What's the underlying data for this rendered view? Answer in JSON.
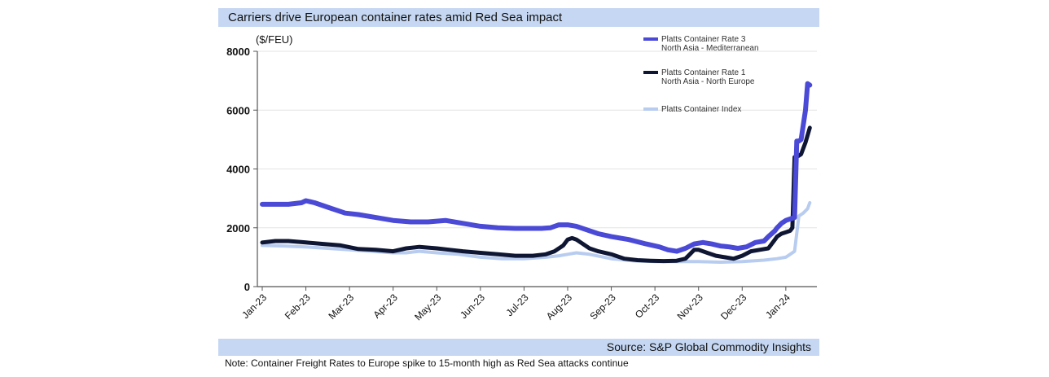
{
  "header": {
    "title": "Carriers drive European container rates amid Red Sea impact"
  },
  "footer": {
    "source": "Source: S&P Global Commodity Insights",
    "note": "Note: Container Freight Rates to Europe spike to 15-month high as Red Sea attacks continue"
  },
  "colors": {
    "band": "#c5d7f2",
    "series_med": "#4a4ad6",
    "series_ne": "#0e1633",
    "series_index": "#b8ccf0"
  },
  "chart_data": {
    "type": "line",
    "title": "Carriers drive European container rates amid Red Sea impact",
    "ylabel": "($/FEU)",
    "xlabel": "",
    "ylim": [
      0,
      8000
    ],
    "yticks": [
      0,
      2000,
      4000,
      6000,
      8000
    ],
    "ytick_labels": [
      "0",
      "2000",
      "4000",
      "6000",
      "8000"
    ],
    "xlim": [
      0,
      12.6
    ],
    "xtick_positions": [
      0,
      1,
      2,
      3,
      4,
      5,
      6,
      7,
      8,
      9,
      10,
      11,
      12
    ],
    "xtick_labels": [
      "Jan-23",
      "Feb-23",
      "Mar-23",
      "Apr-23",
      "May-23",
      "Jun-23",
      "Jul-23",
      "Aug-23",
      "Sep-23",
      "Oct-23",
      "Nov-23",
      "Dec-23",
      "Jan-24"
    ],
    "grid": "horizontal",
    "legend_position": "top-right",
    "series": [
      {
        "name": "Platts Container Rate 3",
        "name_line2": "North Asia - Mediterranean",
        "color_key": "series_med",
        "x": [
          0,
          0.6,
          0.9,
          1.0,
          1.2,
          1.5,
          1.9,
          2.2,
          2.6,
          3.0,
          3.4,
          3.8,
          4.2,
          4.6,
          5.0,
          5.4,
          5.8,
          6.2,
          6.4,
          6.6,
          6.8,
          7.0,
          7.2,
          7.4,
          7.7,
          8.0,
          8.4,
          8.8,
          9.1,
          9.3,
          9.5,
          9.7,
          9.9,
          10.1,
          10.3,
          10.5,
          10.7,
          10.9,
          11.1,
          11.3,
          11.5,
          11.6,
          11.75,
          11.8,
          11.9,
          12.0,
          12.1,
          12.2,
          12.25,
          12.3,
          12.35,
          12.45,
          12.5,
          12.55
        ],
        "values": [
          2800,
          2800,
          2850,
          2920,
          2850,
          2700,
          2500,
          2450,
          2350,
          2250,
          2200,
          2200,
          2250,
          2150,
          2050,
          2000,
          1980,
          1980,
          1980,
          2000,
          2100,
          2100,
          2050,
          1950,
          1800,
          1700,
          1600,
          1450,
          1350,
          1250,
          1200,
          1300,
          1450,
          1500,
          1450,
          1380,
          1350,
          1300,
          1350,
          1500,
          1550,
          1700,
          1900,
          2000,
          2150,
          2250,
          2300,
          2350,
          4950,
          4950,
          5000,
          6000,
          6900,
          6850
        ]
      },
      {
        "name": "Platts Container Rate 1",
        "name_line2": "North Asia - North Europe",
        "color_key": "series_ne",
        "x": [
          0,
          0.3,
          0.6,
          1.0,
          1.4,
          1.8,
          2.2,
          2.6,
          3.0,
          3.3,
          3.6,
          4.0,
          4.3,
          4.6,
          5.0,
          5.4,
          5.8,
          6.2,
          6.5,
          6.7,
          6.9,
          7.0,
          7.1,
          7.2,
          7.3,
          7.5,
          7.7,
          8.0,
          8.3,
          8.6,
          8.9,
          9.2,
          9.5,
          9.7,
          9.8,
          9.9,
          10.0,
          10.2,
          10.4,
          10.6,
          10.8,
          11.0,
          11.2,
          11.4,
          11.6,
          11.75,
          11.8,
          11.9,
          12.0,
          12.1,
          12.15,
          12.2,
          12.3,
          12.35,
          12.45,
          12.55
        ],
        "values": [
          1500,
          1550,
          1550,
          1500,
          1450,
          1400,
          1280,
          1250,
          1200,
          1300,
          1350,
          1300,
          1250,
          1200,
          1150,
          1100,
          1050,
          1050,
          1100,
          1200,
          1400,
          1600,
          1650,
          1600,
          1500,
          1300,
          1200,
          1100,
          950,
          900,
          880,
          870,
          880,
          950,
          1100,
          1250,
          1250,
          1150,
          1050,
          1000,
          950,
          1050,
          1200,
          1250,
          1300,
          1600,
          1700,
          1800,
          1850,
          1900,
          2000,
          4400,
          4450,
          4500,
          4900,
          5400
        ]
      },
      {
        "name": "Platts Container Index",
        "name_line2": "",
        "color_key": "series_index",
        "x": [
          0,
          0.5,
          1.0,
          1.5,
          2.0,
          2.5,
          3.0,
          3.3,
          3.6,
          4.0,
          4.5,
          5.0,
          5.5,
          6.0,
          6.5,
          6.8,
          7.0,
          7.2,
          7.5,
          8.0,
          8.5,
          9.0,
          9.5,
          10.0,
          10.5,
          11.0,
          11.5,
          11.8,
          12.0,
          12.1,
          12.2,
          12.3,
          12.4,
          12.5,
          12.55
        ],
        "values": [
          1400,
          1380,
          1350,
          1300,
          1250,
          1200,
          1150,
          1150,
          1200,
          1150,
          1100,
          1000,
          950,
          950,
          1000,
          1050,
          1100,
          1150,
          1100,
          950,
          880,
          850,
          850,
          850,
          830,
          850,
          900,
          950,
          1000,
          1100,
          1200,
          2400,
          2500,
          2650,
          2850
        ]
      }
    ]
  }
}
